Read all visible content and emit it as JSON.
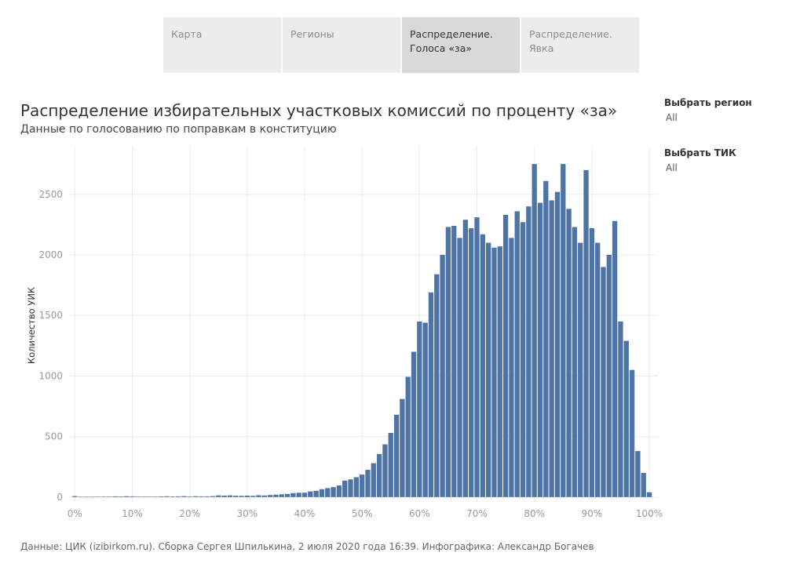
{
  "tabs": [
    {
      "label": "Карта",
      "active": false
    },
    {
      "label": "Регионы",
      "active": false
    },
    {
      "label": "Распределение. Голоса «за»",
      "active": true
    },
    {
      "label": "Распределение. Явка",
      "active": false
    }
  ],
  "title": "Распределение избирательных участковых комиссий по проценту «за»",
  "subtitle": "Данные по голосованию по поправкам в конституцию",
  "filters": [
    {
      "label": "Выбрать регион",
      "value": "All"
    },
    {
      "label": "Выбрать ТИК",
      "value": "All"
    }
  ],
  "footer": "Данные: ЦИК (izibirkom.ru). Сборка Сергея Шпилькина, 2 июля 2020 года 16:39. Инфографика: Александр Богачев",
  "colors": {
    "bar": "#4e74a6",
    "grid": "#ececec"
  },
  "chart_data": {
    "type": "bar",
    "title": "Распределение избирательных участковых комиссий по проценту «за»",
    "xlabel": "",
    "ylabel": "Количество УИК",
    "x_unit": "% за",
    "bin_width": 1,
    "x_ticks": [
      "0%",
      "10%",
      "20%",
      "30%",
      "40%",
      "50%",
      "60%",
      "70%",
      "80%",
      "90%",
      "100%"
    ],
    "y_ticks": [
      0,
      500,
      1000,
      1500,
      2000,
      2500
    ],
    "xlim": [
      -1,
      101.5
    ],
    "ylim": [
      -40,
      2900
    ],
    "grid": true,
    "x": [
      0,
      1,
      2,
      3,
      4,
      5,
      6,
      7,
      8,
      9,
      10,
      11,
      12,
      13,
      14,
      15,
      16,
      17,
      18,
      19,
      20,
      21,
      22,
      23,
      24,
      25,
      26,
      27,
      28,
      29,
      30,
      31,
      32,
      33,
      34,
      35,
      36,
      37,
      38,
      39,
      40,
      41,
      42,
      43,
      44,
      45,
      46,
      47,
      48,
      49,
      50,
      51,
      52,
      53,
      54,
      55,
      56,
      57,
      58,
      59,
      60,
      61,
      62,
      63,
      64,
      65,
      66,
      67,
      68,
      69,
      70,
      71,
      72,
      73,
      74,
      75,
      76,
      77,
      78,
      79,
      80,
      81,
      82,
      83,
      84,
      85,
      86,
      87,
      88,
      89,
      90,
      91,
      92,
      93,
      94,
      95,
      96,
      97,
      98,
      99,
      100
    ],
    "values": [
      8,
      2,
      2,
      2,
      3,
      3,
      4,
      6,
      5,
      7,
      6,
      4,
      4,
      3,
      3,
      5,
      7,
      5,
      6,
      8,
      5,
      7,
      6,
      6,
      8,
      14,
      12,
      14,
      11,
      10,
      12,
      10,
      15,
      13,
      17,
      20,
      23,
      26,
      33,
      36,
      36,
      47,
      52,
      65,
      74,
      82,
      96,
      136,
      146,
      164,
      186,
      225,
      280,
      356,
      435,
      530,
      680,
      810,
      993,
      1200,
      1450,
      1440,
      1690,
      1840,
      2000,
      2230,
      2240,
      2140,
      2290,
      2220,
      2310,
      2170,
      2100,
      2060,
      2070,
      2330,
      2140,
      2360,
      2270,
      2400,
      2750,
      2430,
      2610,
      2450,
      2520,
      2750,
      2380,
      2230,
      2100,
      2700,
      2220,
      2100,
      1900,
      2000,
      2280,
      1450,
      1290,
      1050,
      380,
      200,
      40
    ]
  }
}
